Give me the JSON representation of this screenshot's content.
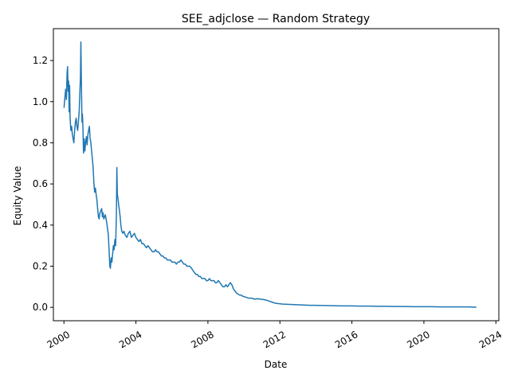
{
  "chart_data": {
    "type": "line",
    "title": "SEE_adjclose — Random Strategy",
    "xlabel": "Date",
    "ylabel": "Equity Value",
    "x_type": "date",
    "xlim": [
      "1999-06-01",
      "2024-03-01"
    ],
    "ylim": [
      -0.065,
      1.355
    ],
    "x_ticks": [
      "2000-01-01",
      "2004-01-01",
      "2008-01-01",
      "2012-01-01",
      "2016-01-01",
      "2020-01-01",
      "2024-01-01"
    ],
    "x_tick_labels": [
      "2000",
      "2004",
      "2008",
      "2012",
      "2016",
      "2020",
      "2024"
    ],
    "y_ticks": [
      0.0,
      0.2,
      0.4,
      0.6,
      0.8,
      1.0,
      1.2
    ],
    "y_tick_labels": [
      "0.0",
      "0.2",
      "0.4",
      "0.6",
      "0.8",
      "1.0",
      "1.2"
    ],
    "grid": false,
    "legend": "none",
    "colors": {
      "line": "#1f77b4",
      "axes": "#000000",
      "background": "#ffffff"
    },
    "series": [
      {
        "x": [
          "2000-01-03",
          "2000-01-20",
          "2000-02-05",
          "2000-02-20",
          "2000-03-05",
          "2000-03-15",
          "2000-03-25",
          "2000-04-05",
          "2000-04-15",
          "2000-04-25",
          "2000-05-05",
          "2000-05-20",
          "2000-06-05",
          "2000-06-20",
          "2000-07-05",
          "2000-07-20",
          "2000-08-05",
          "2000-08-20",
          "2000-09-05",
          "2000-09-20",
          "2000-10-05",
          "2000-10-20",
          "2000-11-05",
          "2000-11-20",
          "2000-12-01",
          "2000-12-10",
          "2000-12-20",
          "2001-01-01",
          "2001-01-10",
          "2001-01-20",
          "2001-02-01",
          "2001-02-15",
          "2001-03-01",
          "2001-03-15",
          "2001-04-01",
          "2001-04-15",
          "2001-05-01",
          "2001-05-15",
          "2001-06-01",
          "2001-06-15",
          "2001-07-01",
          "2001-07-15",
          "2001-08-01",
          "2001-08-15",
          "2001-09-01",
          "2001-09-15",
          "2001-10-01",
          "2001-10-15",
          "2001-11-01",
          "2001-11-15",
          "2001-12-01",
          "2001-12-15",
          "2002-01-01",
          "2002-01-20",
          "2002-02-05",
          "2002-02-20",
          "2002-03-05",
          "2002-03-20",
          "2002-04-05",
          "2002-04-20",
          "2002-05-05",
          "2002-05-20",
          "2002-06-05",
          "2002-06-20",
          "2002-07-05",
          "2002-07-20",
          "2002-08-01",
          "2002-08-15",
          "2002-09-01",
          "2002-09-15",
          "2002-10-01",
          "2002-10-15",
          "2002-11-01",
          "2002-11-15",
          "2002-12-01",
          "2002-12-10",
          "2002-12-20",
          "2003-01-01",
          "2003-01-15",
          "2003-02-01",
          "2003-02-15",
          "2003-03-01",
          "2003-03-20",
          "2003-04-10",
          "2003-05-01",
          "2003-06-01",
          "2003-07-01",
          "2003-08-01",
          "2003-09-01",
          "2003-10-01",
          "2003-11-01",
          "2003-12-01",
          "2004-01-01",
          "2004-02-01",
          "2004-03-01",
          "2004-04-01",
          "2004-05-01",
          "2004-06-01",
          "2004-07-01",
          "2004-08-01",
          "2004-09-01",
          "2004-10-01",
          "2004-11-01",
          "2004-12-01",
          "2005-01-01",
          "2005-02-01",
          "2005-03-01",
          "2005-04-01",
          "2005-05-01",
          "2005-06-01",
          "2005-07-01",
          "2005-08-01",
          "2005-09-01",
          "2005-10-01",
          "2005-11-01",
          "2005-12-01",
          "2006-01-01",
          "2006-02-01",
          "2006-03-01",
          "2006-04-01",
          "2006-05-01",
          "2006-06-01",
          "2006-07-01",
          "2006-08-01",
          "2006-09-01",
          "2006-10-01",
          "2006-11-01",
          "2006-12-01",
          "2007-01-01",
          "2007-02-01",
          "2007-03-01",
          "2007-04-01",
          "2007-05-01",
          "2007-06-01",
          "2007-07-01",
          "2007-08-01",
          "2007-09-01",
          "2007-10-01",
          "2007-11-01",
          "2007-12-01",
          "2008-01-01",
          "2008-02-01",
          "2008-03-01",
          "2008-04-01",
          "2008-05-01",
          "2008-06-01",
          "2008-07-01",
          "2008-08-01",
          "2008-09-01",
          "2008-10-01",
          "2008-11-01",
          "2008-12-01",
          "2009-01-01",
          "2009-02-01",
          "2009-03-01",
          "2009-04-01",
          "2009-05-01",
          "2009-06-01",
          "2009-07-01",
          "2009-08-01",
          "2009-09-01",
          "2009-10-01",
          "2009-11-01",
          "2009-12-01",
          "2010-02-01",
          "2010-04-01",
          "2010-06-01",
          "2010-08-01",
          "2010-10-01",
          "2010-12-01",
          "2011-02-01",
          "2011-04-01",
          "2011-06-01",
          "2011-08-01",
          "2011-10-01",
          "2011-12-01",
          "2012-03-01",
          "2012-06-01",
          "2012-09-01",
          "2012-12-01",
          "2013-03-01",
          "2013-06-01",
          "2013-09-01",
          "2013-12-01",
          "2014-06-01",
          "2014-12-01",
          "2015-06-01",
          "2015-12-01",
          "2016-06-01",
          "2016-12-01",
          "2017-06-01",
          "2017-12-01",
          "2018-06-01",
          "2018-12-01",
          "2019-06-01",
          "2019-12-01",
          "2020-06-01",
          "2020-12-01",
          "2021-06-01",
          "2021-12-01",
          "2022-06-01",
          "2022-12-01"
        ],
        "y": [
          0.97,
          1.02,
          1.06,
          1.01,
          1.14,
          1.17,
          1.05,
          1.1,
          0.95,
          1.08,
          0.92,
          0.86,
          0.88,
          0.84,
          0.82,
          0.8,
          0.86,
          0.9,
          0.92,
          0.88,
          0.86,
          0.9,
          0.95,
          1.05,
          1.12,
          1.29,
          1.1,
          0.9,
          0.94,
          0.88,
          0.75,
          0.82,
          0.76,
          0.8,
          0.83,
          0.79,
          0.84,
          0.86,
          0.88,
          0.82,
          0.8,
          0.76,
          0.72,
          0.68,
          0.6,
          0.56,
          0.58,
          0.55,
          0.52,
          0.48,
          0.44,
          0.43,
          0.46,
          0.47,
          0.48,
          0.44,
          0.46,
          0.43,
          0.44,
          0.45,
          0.43,
          0.41,
          0.38,
          0.35,
          0.28,
          0.2,
          0.19,
          0.24,
          0.22,
          0.26,
          0.3,
          0.28,
          0.33,
          0.3,
          0.45,
          0.68,
          0.55,
          0.53,
          0.5,
          0.47,
          0.44,
          0.4,
          0.37,
          0.36,
          0.37,
          0.35,
          0.34,
          0.36,
          0.37,
          0.34,
          0.35,
          0.36,
          0.34,
          0.33,
          0.32,
          0.33,
          0.31,
          0.31,
          0.3,
          0.29,
          0.3,
          0.29,
          0.28,
          0.27,
          0.27,
          0.28,
          0.27,
          0.27,
          0.26,
          0.25,
          0.25,
          0.24,
          0.24,
          0.23,
          0.23,
          0.23,
          0.22,
          0.22,
          0.22,
          0.21,
          0.22,
          0.22,
          0.23,
          0.22,
          0.21,
          0.21,
          0.2,
          0.2,
          0.2,
          0.19,
          0.18,
          0.17,
          0.16,
          0.16,
          0.15,
          0.15,
          0.14,
          0.14,
          0.14,
          0.13,
          0.13,
          0.14,
          0.13,
          0.13,
          0.13,
          0.12,
          0.12,
          0.13,
          0.12,
          0.11,
          0.1,
          0.1,
          0.11,
          0.1,
          0.11,
          0.12,
          0.11,
          0.09,
          0.08,
          0.07,
          0.065,
          0.06,
          0.06,
          0.055,
          0.05,
          0.045,
          0.045,
          0.04,
          0.042,
          0.04,
          0.038,
          0.035,
          0.03,
          0.025,
          0.02,
          0.018,
          0.016,
          0.015,
          0.014,
          0.013,
          0.012,
          0.011,
          0.01,
          0.01,
          0.009,
          0.008,
          0.007,
          0.007,
          0.006,
          0.006,
          0.005,
          0.005,
          0.004,
          0.004,
          0.003,
          0.003,
          0.003,
          0.002,
          0.002,
          0.002,
          0.002,
          0.001
        ]
      }
    ]
  }
}
